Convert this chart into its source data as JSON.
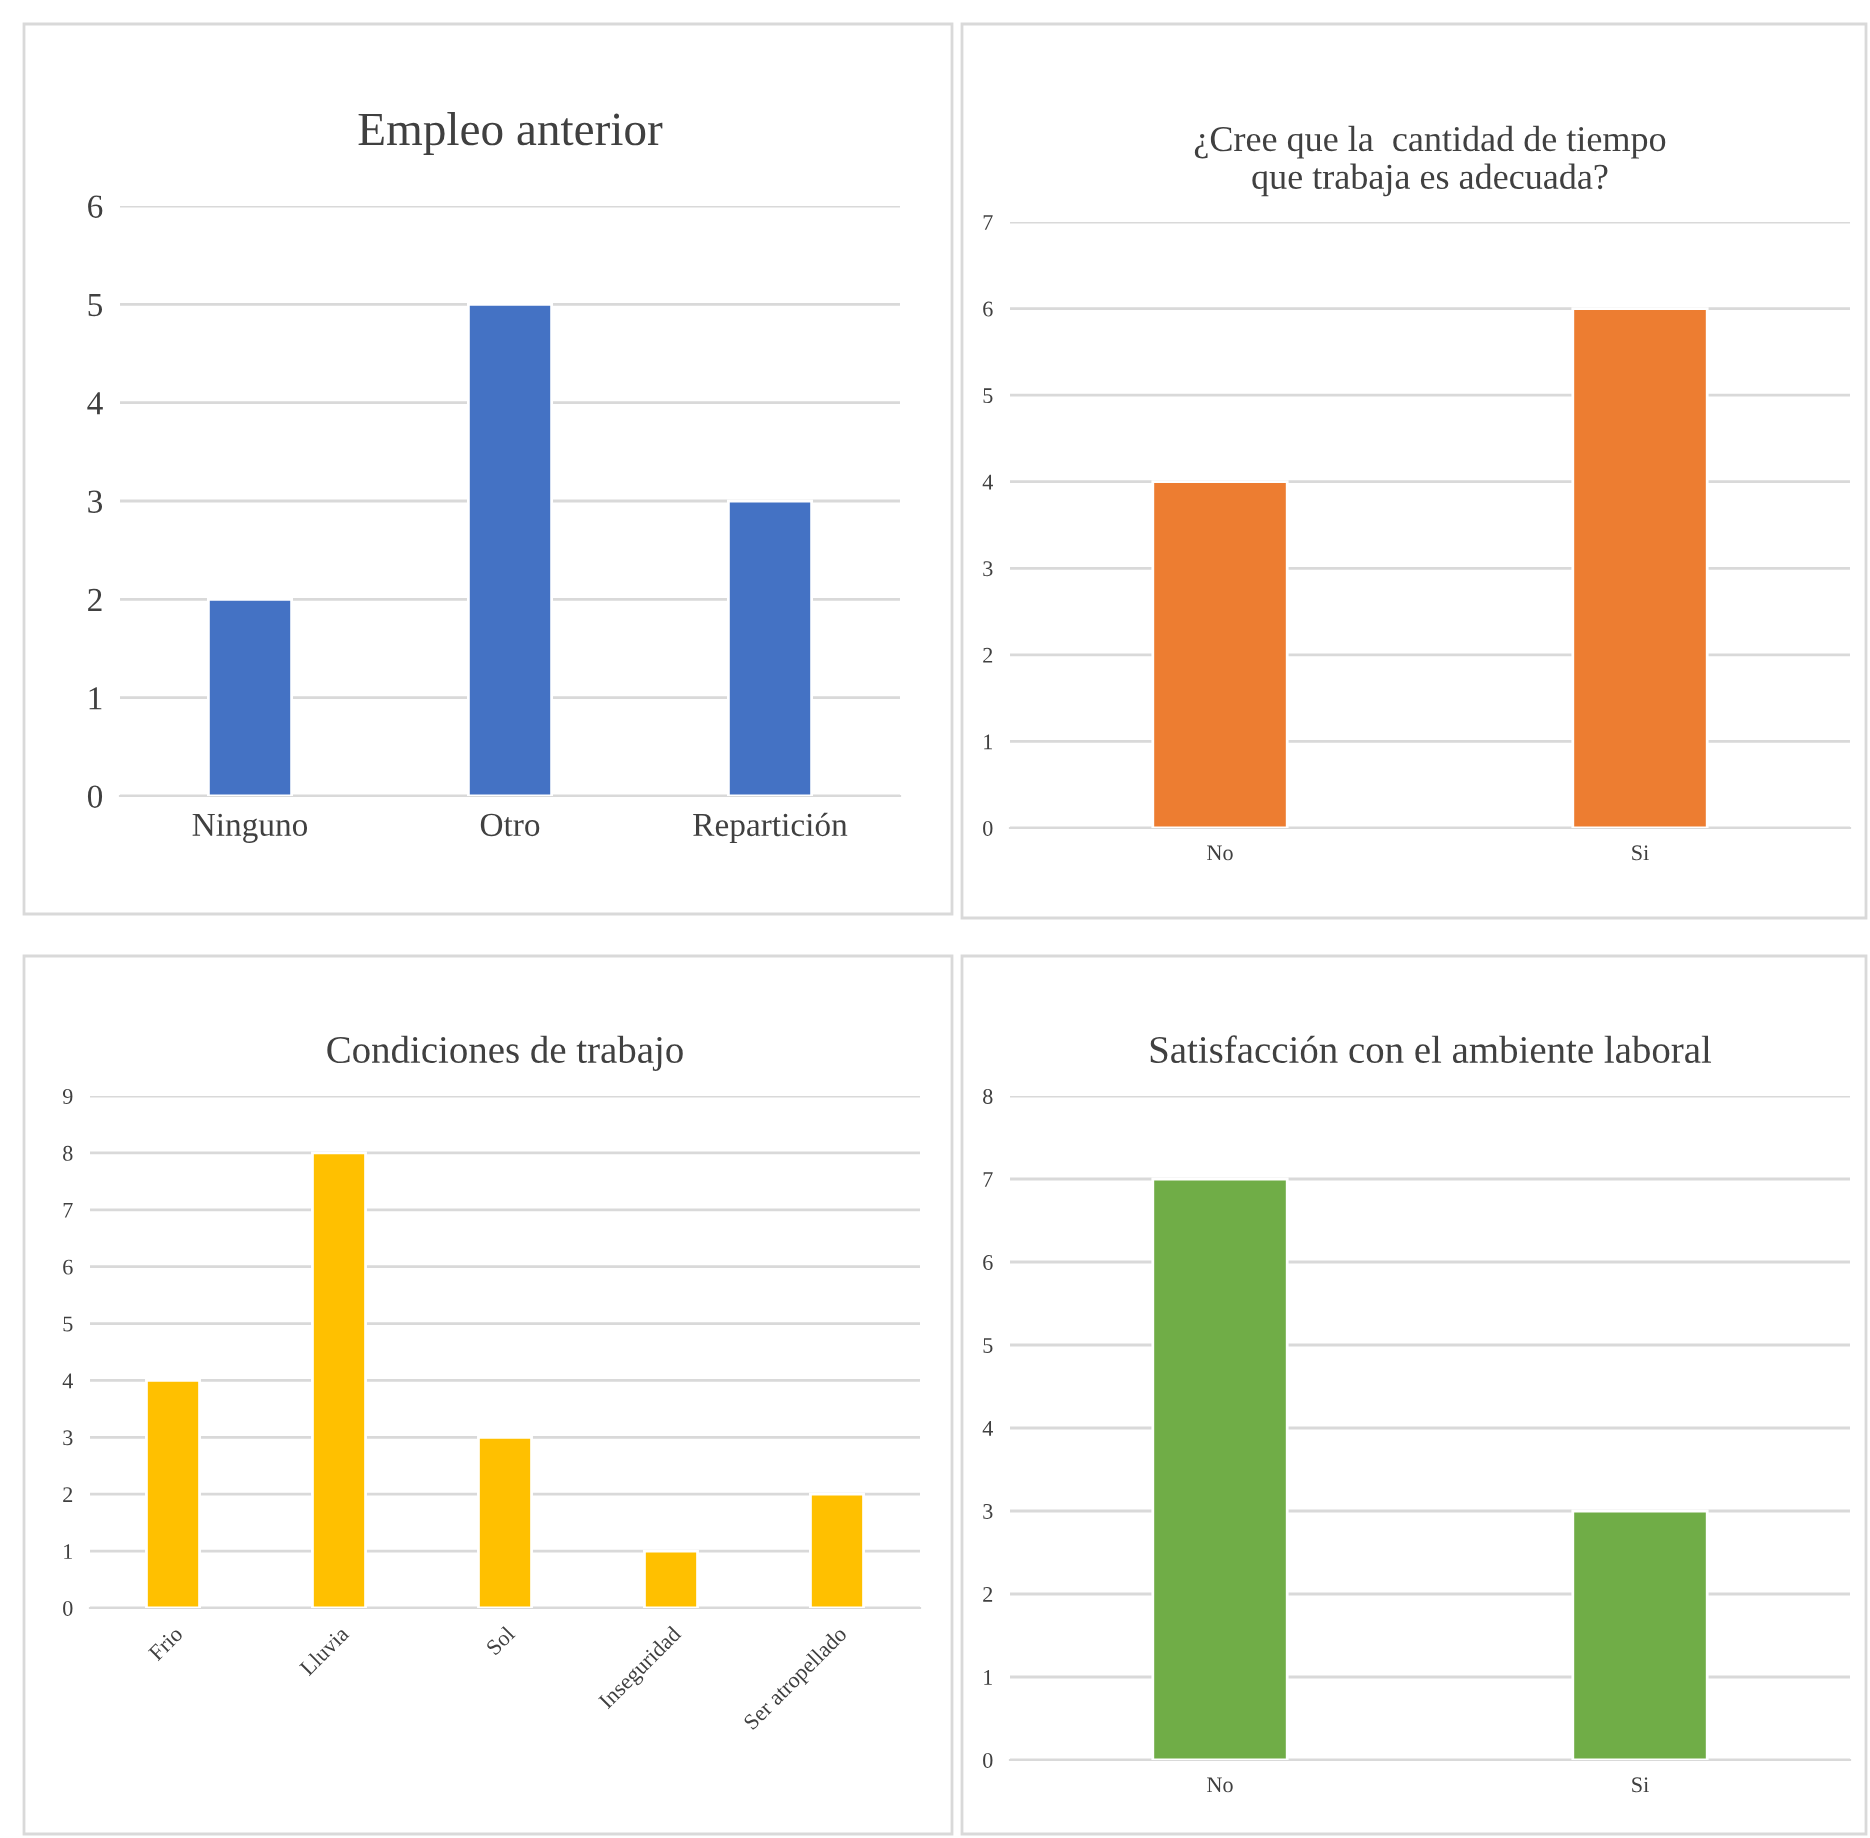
{
  "chart_data": [
    {
      "type": "bar",
      "title": "Empleo anterior",
      "categories": [
        "Ninguno",
        "Otro",
        "Repartición"
      ],
      "values": [
        2,
        5,
        3
      ],
      "color": "#4472c4",
      "ylim": [
        0,
        6
      ],
      "yticks": [
        0,
        1,
        2,
        3,
        4,
        5,
        6
      ],
      "grid": "y"
    },
    {
      "type": "bar",
      "title": "¿Cree que la  cantidad de tiempo\nque trabaja es adecuada?",
      "categories": [
        "No",
        "Si"
      ],
      "values": [
        4,
        6
      ],
      "color": "#ed7d31",
      "ylim": [
        0,
        7
      ],
      "yticks": [
        0,
        1,
        2,
        3,
        4,
        5,
        6,
        7
      ],
      "grid": "y"
    },
    {
      "type": "bar",
      "title": "Condiciones de trabajo",
      "categories": [
        "Frio",
        "Lluvia",
        "Sol",
        "Inseguridad",
        "Ser atropellado"
      ],
      "values": [
        4,
        8,
        3,
        1,
        2
      ],
      "color": "#ffc000",
      "ylim": [
        0,
        9
      ],
      "yticks": [
        0,
        1,
        2,
        3,
        4,
        5,
        6,
        7,
        8,
        9
      ],
      "grid": "y"
    },
    {
      "type": "bar",
      "title": "Satisfacción con el ambiente laboral",
      "categories": [
        "No",
        "Si"
      ],
      "values": [
        7,
        3
      ],
      "color": "#70ad47",
      "ylim": [
        0,
        8
      ],
      "yticks": [
        0,
        1,
        2,
        3,
        4,
        5,
        6,
        7,
        8
      ],
      "grid": "y"
    }
  ]
}
